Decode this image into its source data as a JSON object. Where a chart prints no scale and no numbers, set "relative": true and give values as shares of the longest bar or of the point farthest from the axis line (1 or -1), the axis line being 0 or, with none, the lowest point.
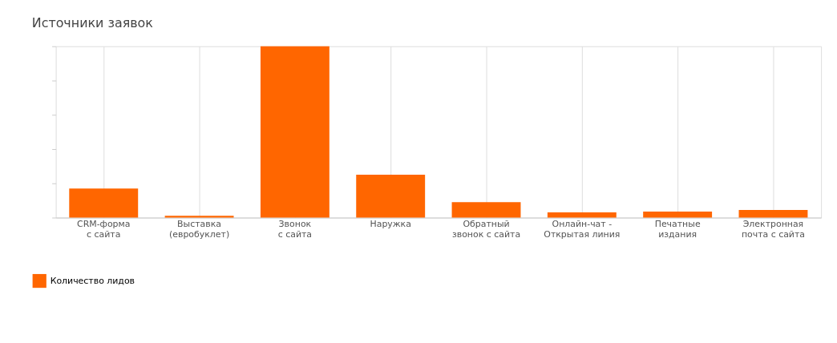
{
  "chart_data": {
    "type": "bar",
    "title": "Источники заявок",
    "relative": true,
    "grid": "x",
    "legend": "bottom left",
    "categories": [
      "CRM-форма с сайта",
      "Выставка (евробуклет)",
      "Звонок с сайта",
      "Наружка",
      "Обратный звонок с сайта",
      "Онлайн-чат - Открытая линия",
      "Печатные издания",
      "Электронная почта с сайта"
    ],
    "series": [
      {
        "name": "Количество лидов",
        "color": "#ff6600",
        "values": [
          0.17,
          0.01,
          1,
          0.25,
          0.09,
          0.03,
          0.035,
          0.045
        ]
      }
    ]
  }
}
